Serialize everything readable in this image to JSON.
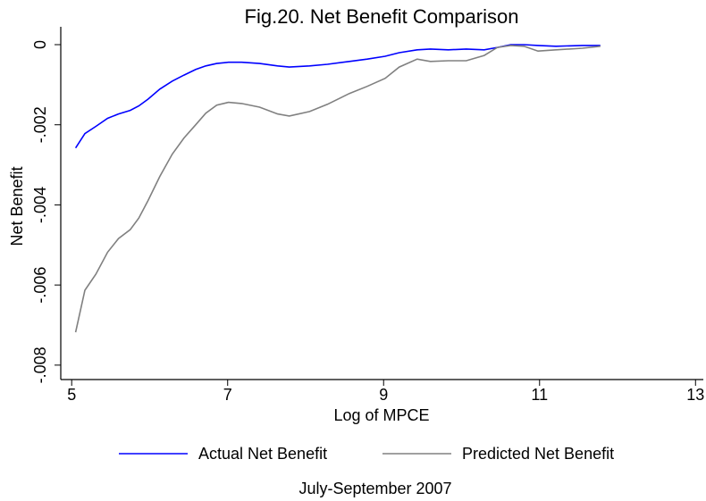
{
  "chart_data": {
    "type": "line",
    "title": "Fig.20. Net Benefit Comparison",
    "xlabel": "Log of MPCE",
    "ylabel": "Net Benefit",
    "note": "July-September 2007",
    "x": [
      5.05,
      5.17,
      5.31,
      5.46,
      5.6,
      5.75,
      5.86,
      5.98,
      6.13,
      6.29,
      6.44,
      6.59,
      6.72,
      6.86,
      7.01,
      7.18,
      7.41,
      7.64,
      7.79,
      8.05,
      8.28,
      8.56,
      8.79,
      9.02,
      9.2,
      9.43,
      9.6,
      9.83,
      10.06,
      10.29,
      10.46,
      10.63,
      10.8,
      10.98,
      11.21,
      11.55,
      11.78
    ],
    "series": [
      {
        "name": "Actual Net Benefit",
        "color": "#0000ff",
        "values": [
          -0.00258,
          -0.00222,
          -0.00204,
          -0.00184,
          -0.00173,
          -0.00164,
          -0.00153,
          -0.00136,
          -0.00111,
          -0.00091,
          -0.00076,
          -0.00062,
          -0.00053,
          -0.00047,
          -0.00044,
          -0.00044,
          -0.00047,
          -0.00053,
          -0.00056,
          -0.00053,
          -0.00049,
          -0.00042,
          -0.00036,
          -0.00029,
          -0.0002,
          -0.00013,
          -0.00011,
          -0.00013,
          -0.00011,
          -0.00013,
          -7e-05,
          0,
          0,
          -2e-05,
          -4e-05,
          -2e-05,
          -2e-05
        ]
      },
      {
        "name": "Predicted Net Benefit",
        "color": "#808080",
        "values": [
          -0.00718,
          -0.00613,
          -0.00573,
          -0.00518,
          -0.00484,
          -0.00462,
          -0.00433,
          -0.00389,
          -0.00329,
          -0.00273,
          -0.00233,
          -0.002,
          -0.00171,
          -0.00151,
          -0.00144,
          -0.00147,
          -0.00156,
          -0.00173,
          -0.00178,
          -0.00167,
          -0.00149,
          -0.00122,
          -0.00104,
          -0.00084,
          -0.00056,
          -0.00036,
          -0.00042,
          -0.0004,
          -0.0004,
          -0.00027,
          -7e-05,
          -2e-05,
          -4e-05,
          -0.00016,
          -0.00013,
          -9e-05,
          -4e-05
        ]
      }
    ],
    "xlim": [
      4.86,
      13.1
    ],
    "xticks": [
      5,
      7,
      9,
      11,
      13
    ],
    "ylim": [
      -0.00836,
      0.00029
    ],
    "yticks": [
      {
        "value": -0.008,
        "label": "-.008"
      },
      {
        "value": -0.006,
        "label": "-.006"
      },
      {
        "value": -0.004,
        "label": "-.004"
      },
      {
        "value": -0.002,
        "label": "-.002"
      },
      0
    ],
    "grid": false,
    "legend_position": "bottom"
  }
}
